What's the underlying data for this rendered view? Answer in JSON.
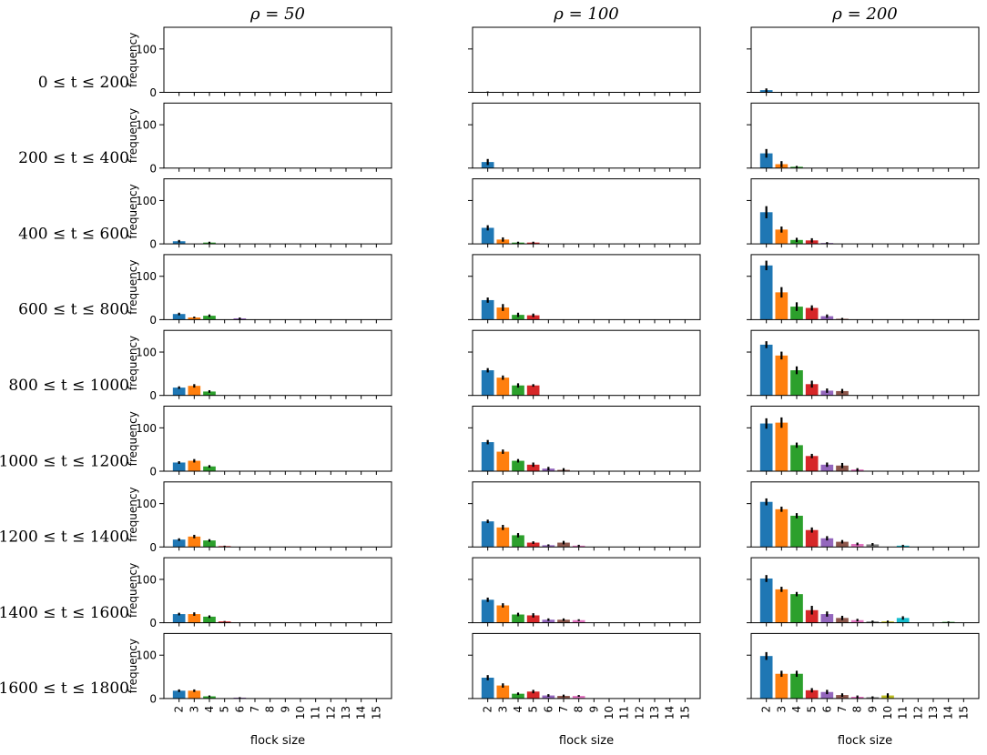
{
  "chart_data": {
    "type": "bar",
    "layout": "grid",
    "grid_rows": 9,
    "grid_cols": 3,
    "columns": [
      "ρ = 50",
      "ρ = 100",
      "ρ = 200"
    ],
    "rows": [
      "0 ≤ t ≤ 200",
      "200 ≤ t ≤ 400",
      "400 ≤ t ≤ 600",
      "600 ≤ t ≤ 800",
      "800 ≤ t ≤ 1000",
      "1000 ≤ t ≤ 1200",
      "1200 ≤ t ≤ 1400",
      "1400 ≤ t ≤ 1600",
      "1600 ≤ t ≤ 1800"
    ],
    "categories": [
      "2",
      "3",
      "4",
      "5",
      "6",
      "7",
      "8",
      "9",
      "10",
      "11",
      "12",
      "13",
      "14",
      "15"
    ],
    "xlabel": "flock size",
    "ylabel": "frequency",
    "ylim": [
      0,
      150
    ],
    "yticks": [
      0,
      100
    ],
    "bar_colors": [
      "#1f77b4",
      "#ff7f0e",
      "#2ca02c",
      "#d62728",
      "#9467bd",
      "#8c564b",
      "#e377c2",
      "#7f7f7f",
      "#bcbd22",
      "#17becf",
      "#1f77b4",
      "#ff7f0e",
      "#2ca02c",
      "#d62728"
    ],
    "values": [
      [
        [
          0,
          0,
          0,
          0,
          0,
          0,
          0,
          0,
          0,
          0,
          0,
          0,
          0,
          0
        ],
        [
          0,
          0,
          0,
          0,
          0,
          0,
          0,
          0,
          0,
          0,
          0,
          0,
          0,
          0
        ],
        [
          6,
          0,
          3,
          0,
          0,
          0,
          0,
          0,
          0,
          0,
          0,
          0,
          0,
          0
        ],
        [
          13,
          5,
          9,
          0,
          3,
          0,
          0,
          0,
          0,
          0,
          0,
          0,
          0,
          0
        ],
        [
          18,
          22,
          9,
          0,
          0,
          0,
          0,
          0,
          0,
          0,
          0,
          0,
          0,
          0
        ],
        [
          20,
          24,
          11,
          0,
          0,
          0,
          0,
          0,
          0,
          0,
          0,
          0,
          0,
          0
        ],
        [
          17,
          24,
          15,
          2,
          0,
          0,
          0,
          0,
          0,
          0,
          0,
          0,
          0,
          0
        ],
        [
          20,
          20,
          14,
          3,
          0,
          0,
          0,
          0,
          0,
          0,
          0,
          0,
          0,
          0
        ],
        [
          18,
          18,
          5,
          0,
          2,
          0,
          0,
          0,
          0,
          0,
          0,
          0,
          0,
          0
        ]
      ],
      [
        [
          1,
          0,
          0,
          0,
          0,
          0,
          0,
          0,
          0,
          0,
          0,
          0,
          0,
          0
        ],
        [
          14,
          0,
          0,
          0,
          0,
          0,
          0,
          0,
          0,
          0,
          0,
          0,
          0,
          0
        ],
        [
          37,
          10,
          3,
          3,
          0,
          0,
          0,
          0,
          0,
          0,
          0,
          0,
          0,
          0
        ],
        [
          45,
          28,
          11,
          10,
          0,
          0,
          0,
          0,
          0,
          0,
          0,
          0,
          0,
          0
        ],
        [
          58,
          41,
          23,
          23,
          0,
          0,
          0,
          0,
          0,
          0,
          0,
          0,
          0,
          0
        ],
        [
          67,
          45,
          24,
          15,
          6,
          3,
          0,
          0,
          0,
          0,
          0,
          0,
          0,
          0
        ],
        [
          59,
          45,
          27,
          10,
          4,
          10,
          3,
          0,
          0,
          0,
          0,
          0,
          0,
          0
        ],
        [
          53,
          40,
          19,
          17,
          7,
          7,
          6,
          0,
          0,
          0,
          0,
          0,
          0,
          0
        ],
        [
          48,
          30,
          11,
          16,
          7,
          6,
          6,
          0,
          0,
          0,
          0,
          0,
          0,
          0
        ]
      ],
      [
        [
          5,
          0,
          0,
          0,
          0,
          0,
          0,
          0,
          0,
          0,
          0,
          0,
          0,
          0
        ],
        [
          34,
          9,
          3,
          0,
          0,
          0,
          0,
          0,
          0,
          0,
          0,
          0,
          0,
          0
        ],
        [
          73,
          33,
          9,
          8,
          2,
          0,
          0,
          0,
          0,
          0,
          0,
          0,
          0,
          0
        ],
        [
          125,
          63,
          30,
          27,
          8,
          2,
          0,
          0,
          0,
          0,
          0,
          0,
          0,
          0
        ],
        [
          117,
          92,
          58,
          26,
          11,
          10,
          0,
          0,
          0,
          0,
          0,
          0,
          0,
          0
        ],
        [
          110,
          112,
          60,
          35,
          15,
          13,
          4,
          0,
          0,
          0,
          0,
          0,
          0,
          0
        ],
        [
          104,
          87,
          72,
          39,
          20,
          12,
          7,
          6,
          0,
          3,
          0,
          0,
          0,
          0
        ],
        [
          102,
          77,
          66,
          29,
          20,
          11,
          6,
          3,
          3,
          11,
          0,
          0,
          2,
          0
        ],
        [
          98,
          57,
          57,
          19,
          15,
          8,
          4,
          3,
          7,
          0,
          0,
          0,
          0,
          0
        ]
      ]
    ],
    "errors": [
      [
        [
          0,
          0,
          0,
          0,
          0,
          0,
          0,
          0,
          0,
          0,
          0,
          0,
          0,
          0
        ],
        [
          0,
          0,
          0,
          0,
          0,
          0,
          0,
          0,
          0,
          0,
          0,
          0,
          0,
          0
        ],
        [
          3,
          0,
          2,
          0,
          0,
          0,
          0,
          0,
          0,
          0,
          0,
          0,
          0,
          0
        ],
        [
          3,
          2,
          3,
          0,
          2,
          0,
          0,
          0,
          0,
          0,
          0,
          0,
          0,
          0
        ],
        [
          3,
          4,
          3,
          0,
          0,
          0,
          0,
          0,
          0,
          0,
          0,
          0,
          0,
          0
        ],
        [
          3,
          4,
          3,
          0,
          0,
          0,
          0,
          0,
          0,
          0,
          0,
          0,
          0,
          0
        ],
        [
          3,
          4,
          3,
          1,
          0,
          0,
          0,
          0,
          0,
          0,
          0,
          0,
          0,
          0
        ],
        [
          3,
          4,
          3,
          1,
          0,
          0,
          0,
          0,
          0,
          0,
          0,
          0,
          0,
          0
        ],
        [
          3,
          3,
          2,
          0,
          1,
          0,
          0,
          0,
          0,
          0,
          0,
          0,
          0,
          0
        ]
      ],
      [
        [
          1,
          0,
          0,
          0,
          0,
          0,
          0,
          0,
          0,
          0,
          0,
          0,
          0,
          0
        ],
        [
          7,
          0,
          0,
          0,
          0,
          0,
          0,
          0,
          0,
          0,
          0,
          0,
          0,
          0
        ],
        [
          6,
          5,
          2,
          2,
          0,
          0,
          0,
          0,
          0,
          0,
          0,
          0,
          0,
          0
        ],
        [
          6,
          8,
          5,
          4,
          0,
          0,
          0,
          0,
          0,
          0,
          0,
          0,
          0,
          0
        ],
        [
          5,
          5,
          5,
          3,
          0,
          0,
          0,
          0,
          0,
          0,
          0,
          0,
          0,
          0
        ],
        [
          5,
          5,
          4,
          5,
          4,
          4,
          0,
          0,
          0,
          0,
          0,
          0,
          0,
          0
        ],
        [
          4,
          6,
          5,
          3,
          2,
          4,
          2,
          0,
          0,
          0,
          0,
          0,
          0,
          0
        ],
        [
          5,
          5,
          4,
          5,
          3,
          3,
          2,
          0,
          0,
          0,
          0,
          0,
          0,
          0
        ],
        [
          6,
          5,
          3,
          4,
          3,
          3,
          2,
          0,
          0,
          0,
          0,
          0,
          0,
          0
        ]
      ],
      [
        [
          4,
          0,
          0,
          0,
          0,
          0,
          0,
          0,
          0,
          0,
          0,
          0,
          0,
          0
        ],
        [
          10,
          7,
          2,
          0,
          0,
          0,
          0,
          0,
          0,
          0,
          0,
          0,
          0,
          0
        ],
        [
          14,
          7,
          5,
          5,
          2,
          0,
          0,
          0,
          0,
          0,
          0,
          0,
          0,
          0
        ],
        [
          11,
          12,
          10,
          6,
          4,
          2,
          0,
          0,
          0,
          0,
          0,
          0,
          0,
          0
        ],
        [
          8,
          9,
          9,
          8,
          5,
          5,
          0,
          0,
          0,
          0,
          0,
          0,
          0,
          0
        ],
        [
          12,
          12,
          6,
          5,
          5,
          6,
          3,
          0,
          0,
          0,
          0,
          0,
          0,
          0
        ],
        [
          8,
          6,
          6,
          6,
          5,
          4,
          3,
          3,
          0,
          2,
          0,
          0,
          0,
          0
        ],
        [
          8,
          6,
          5,
          10,
          6,
          5,
          3,
          2,
          2,
          4,
          0,
          0,
          1,
          0
        ],
        [
          9,
          7,
          7,
          5,
          5,
          4,
          3,
          2,
          5,
          0,
          0,
          0,
          0,
          0
        ]
      ]
    ]
  }
}
